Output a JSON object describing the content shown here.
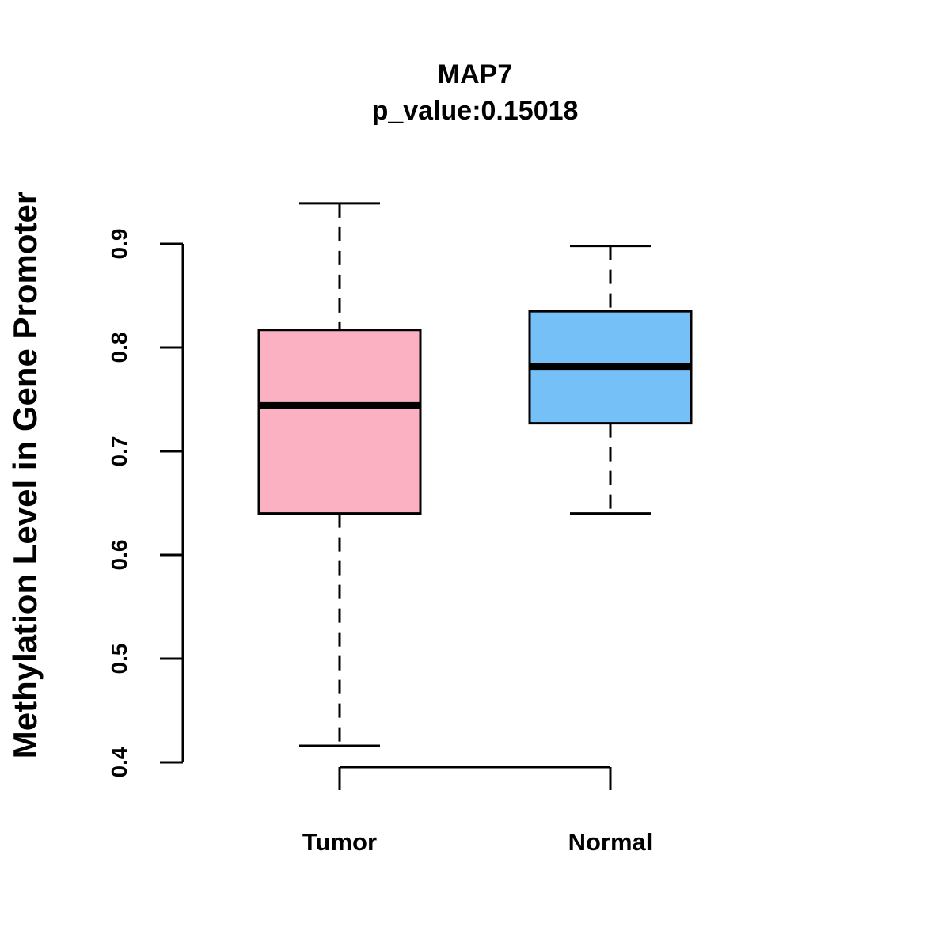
{
  "chart_data": {
    "type": "box",
    "title": "MAP7",
    "subtitle": "p_value:0.15018",
    "xlabel": "",
    "ylabel": "Methylation Level in Gene Promoter",
    "ylim": [
      0.4,
      0.9
    ],
    "yticks": [
      "0.4",
      "0.5",
      "0.6",
      "0.7",
      "0.8",
      "0.9"
    ],
    "categories": [
      "Tumor",
      "Normal"
    ],
    "series": [
      {
        "name": "Tumor",
        "color": "#FCB1C3",
        "whisker_low": 0.416,
        "q1": 0.64,
        "median": 0.744,
        "q3": 0.817,
        "whisker_high": 0.939
      },
      {
        "name": "Normal",
        "color": "#75C1F7",
        "whisker_low": 0.64,
        "q1": 0.727,
        "median": 0.782,
        "q3": 0.835,
        "whisker_high": 0.898
      }
    ]
  }
}
